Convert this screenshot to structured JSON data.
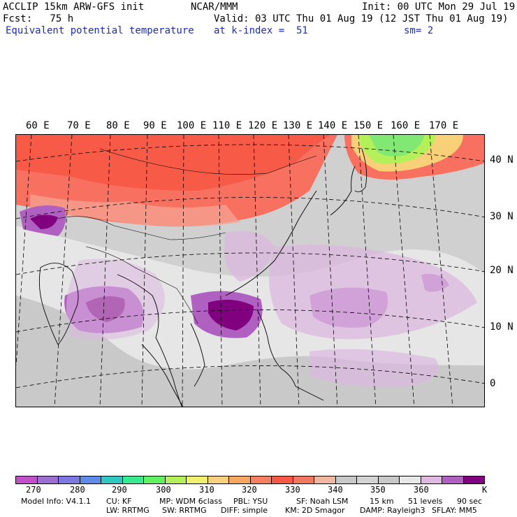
{
  "header": {
    "line1_left": "ACCLIP 15km ARW-GFS init",
    "line1_center": "NCAR/MMM",
    "line1_right": "Init: 00 UTC Mon 29 Jul 19",
    "line2_left": "Fcst:   75 h",
    "line2_right": "Valid: 03 UTC Thu 01 Aug 19 (12 JST Thu 01 Aug 19)",
    "line3_left": "Equivalent potential temperature",
    "line3_center": "at k-index =  51",
    "line3_right": "sm= 2"
  },
  "lon_labels": [
    "60 E",
    "70 E",
    "80 E",
    "90 E",
    "100 E",
    "110 E",
    "120 E",
    "130 E",
    "140 E",
    "150 E",
    "160 E",
    "170 E"
  ],
  "lat_labels": [
    "40 N",
    "30 N",
    "20 N",
    "10 N",
    "0"
  ],
  "colorbar": {
    "colors": [
      "#c050c8",
      "#9d6fd0",
      "#7c78e0",
      "#5e8ce8",
      "#2ec8c0",
      "#3ce890",
      "#64f064",
      "#b4f05a",
      "#f0f070",
      "#f8d080",
      "#f8a860",
      "#f88060",
      "#f85848",
      "#f07860",
      "#f0b8a0",
      "#c8c8c8",
      "#d4d4d4",
      "#c8c8c8",
      "#e8e8e8",
      "#e0b8e0",
      "#b060c0",
      "#800080"
    ],
    "labels": [
      "270",
      "280",
      "290",
      "300",
      "310",
      "320",
      "330",
      "340",
      "350",
      "360",
      "K"
    ]
  },
  "footer": {
    "model_info": "Model Info: V4.1.1",
    "cu": "CU: KF",
    "mp": "MP: WDM 6class",
    "pbl": "PBL: YSU",
    "sf": "SF: Noah LSM",
    "res": "15 km",
    "levels": "51 levels",
    "dt": "90 sec",
    "lw": "LW: RRTMG",
    "sw": "SW: RRTMG",
    "diff": "DIFF: simple",
    "km": "KM: 2D Smagor",
    "damp": "DAMP: Rayleigh3",
    "sflay": "SFLAY: MM5"
  }
}
